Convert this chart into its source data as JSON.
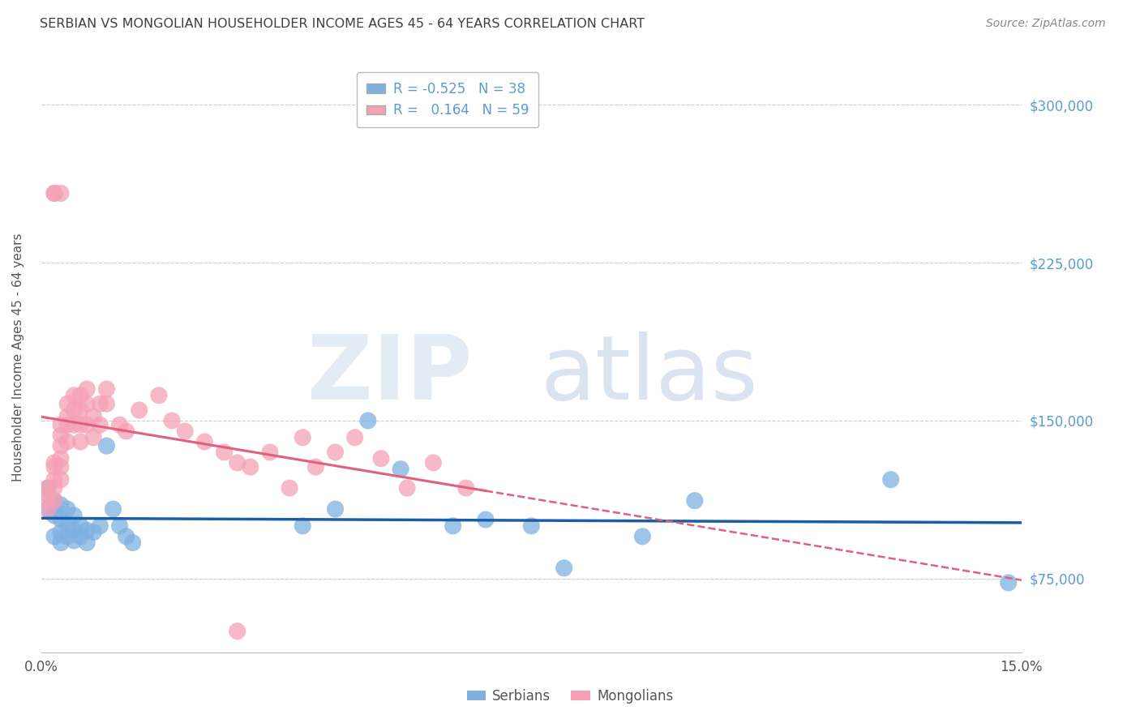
{
  "title": "SERBIAN VS MONGOLIAN HOUSEHOLDER INCOME AGES 45 - 64 YEARS CORRELATION CHART",
  "source": "Source: ZipAtlas.com",
  "ylabel_values": [
    75000,
    150000,
    225000,
    300000
  ],
  "ylabel_labels": [
    "$75,000",
    "$150,000",
    "$225,000",
    "$300,000"
  ],
  "xlim": [
    0.0,
    0.15
  ],
  "ylim": [
    40000,
    320000
  ],
  "ylabel": "Householder Income Ages 45 - 64 years",
  "legend_label_serbian": "Serbians",
  "legend_label_mongolian": "Mongolians",
  "R_serbian": -0.525,
  "N_serbian": 38,
  "R_mongolian": 0.164,
  "N_mongolian": 59,
  "serbian_color": "#7EB0E0",
  "mongolian_color": "#F5A0B5",
  "serbian_line_color": "#1A5EA8",
  "mongolian_line_color": "#E06080",
  "background_color": "#FFFFFF",
  "grid_color": "#CCCCCC",
  "title_color": "#404040",
  "axis_label_color": "#555555",
  "right_axis_color": "#5B9BD5",
  "serbian_x": [
    0.001,
    0.001,
    0.002,
    0.002,
    0.002,
    0.003,
    0.003,
    0.003,
    0.003,
    0.004,
    0.004,
    0.004,
    0.005,
    0.005,
    0.005,
    0.006,
    0.006,
    0.007,
    0.007,
    0.008,
    0.009,
    0.01,
    0.011,
    0.012,
    0.013,
    0.014,
    0.04,
    0.045,
    0.05,
    0.055,
    0.063,
    0.068,
    0.075,
    0.08,
    0.092,
    0.1,
    0.13,
    0.148
  ],
  "serbian_y": [
    118000,
    108000,
    112000,
    105000,
    95000,
    110000,
    103000,
    97000,
    92000,
    108000,
    100000,
    95000,
    105000,
    98000,
    93000,
    100000,
    95000,
    98000,
    92000,
    97000,
    100000,
    138000,
    108000,
    100000,
    95000,
    92000,
    100000,
    108000,
    150000,
    127000,
    100000,
    103000,
    100000,
    80000,
    95000,
    112000,
    122000,
    73000
  ],
  "mongolian_x": [
    0.001,
    0.001,
    0.001,
    0.001,
    0.002,
    0.002,
    0.002,
    0.002,
    0.002,
    0.003,
    0.003,
    0.003,
    0.003,
    0.003,
    0.003,
    0.004,
    0.004,
    0.004,
    0.004,
    0.005,
    0.005,
    0.005,
    0.006,
    0.006,
    0.006,
    0.006,
    0.007,
    0.007,
    0.007,
    0.008,
    0.008,
    0.009,
    0.009,
    0.01,
    0.01,
    0.012,
    0.013,
    0.015,
    0.018,
    0.02,
    0.022,
    0.025,
    0.028,
    0.03,
    0.032,
    0.035,
    0.038,
    0.04,
    0.042,
    0.045,
    0.048,
    0.052,
    0.056,
    0.06,
    0.065,
    0.03,
    0.002,
    0.002,
    0.003
  ],
  "mongolian_y": [
    118000,
    115000,
    112000,
    108000,
    130000,
    128000,
    122000,
    118000,
    112000,
    148000,
    143000,
    138000,
    132000,
    128000,
    122000,
    158000,
    152000,
    148000,
    140000,
    162000,
    155000,
    148000,
    162000,
    155000,
    148000,
    140000,
    165000,
    158000,
    148000,
    152000,
    142000,
    158000,
    148000,
    165000,
    158000,
    148000,
    145000,
    155000,
    162000,
    150000,
    145000,
    140000,
    135000,
    130000,
    128000,
    135000,
    118000,
    142000,
    128000,
    135000,
    142000,
    132000,
    118000,
    130000,
    118000,
    50000,
    258000,
    258000,
    258000
  ],
  "trendline_x_min": 0.0,
  "trendline_x_max": 0.15,
  "trendline_x_solid_max": 0.068
}
